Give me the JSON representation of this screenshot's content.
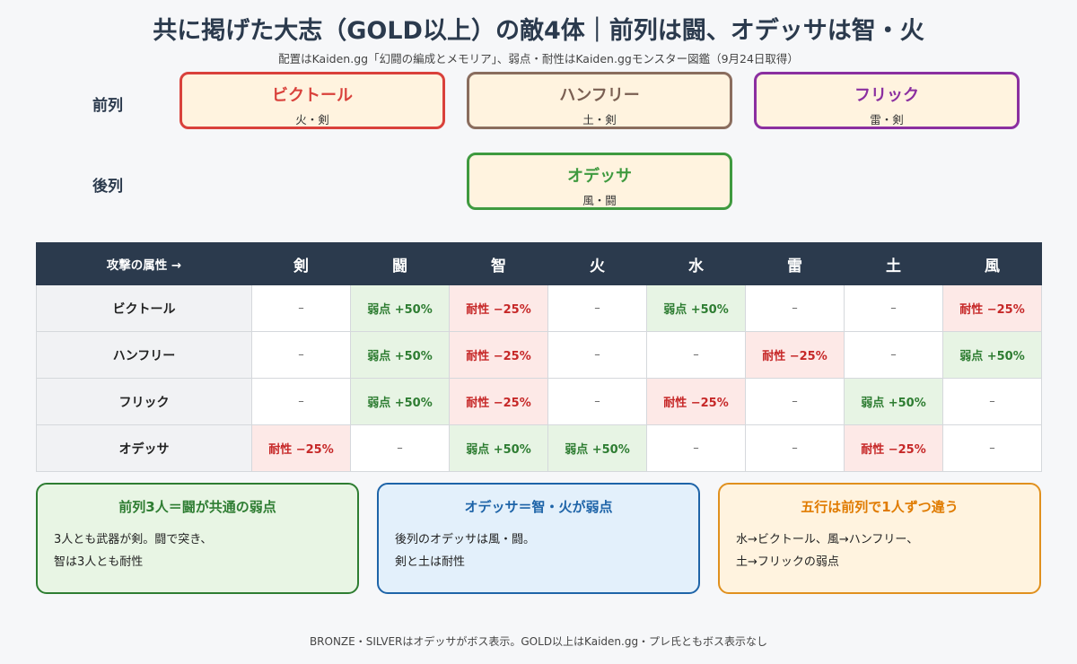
{
  "title": "共に掲げた大志（GOLD以上）の敵4体｜前列は闘、オデッサは智・火",
  "subtitle": "配置はKaiden.gg「幻闘の編成とメモリア」、弱点・耐性はKaiden.ggモンスター図鑑（9月24日取得）",
  "formation": {
    "front_label": "前列",
    "back_label": "後列",
    "front": [
      {
        "name": "ビクトール",
        "attr": "火・剣",
        "color": "#d9413b"
      },
      {
        "name": "ハンフリー",
        "attr": "土・剣",
        "color": "#8a6d5e"
      },
      {
        "name": "フリック",
        "attr": "雷・剣",
        "color": "#8b2fa0"
      }
    ],
    "back": [
      {
        "name": "オデッサ",
        "attr": "風・闘",
        "color": "#3f9a3f"
      }
    ]
  },
  "table": {
    "corner": "攻撃の属性 →",
    "columns": [
      "剣",
      "闘",
      "智",
      "火",
      "水",
      "雷",
      "土",
      "風"
    ],
    "rows": [
      {
        "name": "ビクトール",
        "cells": [
          "–",
          "弱点 +50%",
          "耐性 −25%",
          "–",
          "弱点 +50%",
          "–",
          "–",
          "耐性 −25%"
        ]
      },
      {
        "name": "ハンフリー",
        "cells": [
          "–",
          "弱点 +50%",
          "耐性 −25%",
          "–",
          "–",
          "耐性 −25%",
          "–",
          "弱点 +50%"
        ]
      },
      {
        "name": "フリック",
        "cells": [
          "–",
          "弱点 +50%",
          "耐性 −25%",
          "–",
          "耐性 −25%",
          "–",
          "弱点 +50%",
          "–"
        ]
      },
      {
        "name": "オデッサ",
        "cells": [
          "耐性 −25%",
          "–",
          "弱点 +50%",
          "弱点 +50%",
          "–",
          "–",
          "耐性 −25%",
          "–"
        ]
      }
    ],
    "colors": {
      "weak": "#2e7d32",
      "resist": "#c62828",
      "header": "#2b3a4d"
    }
  },
  "notes": [
    {
      "title": "前列3人＝闘が共通の弱点",
      "line1": "3人とも武器が剣。闘で突き、",
      "line2": "智は3人とも耐性"
    },
    {
      "title": "オデッサ＝智・火が弱点",
      "line1": "後列のオデッサは風・闘。",
      "line2": "剣と土は耐性"
    },
    {
      "title": "五行は前列で1人ずつ違う",
      "line1": "水→ビクトール、風→ハンフリー、",
      "line2": "土→フリックの弱点"
    }
  ],
  "footer": "BRONZE・SILVERはオデッサがボス表示。GOLD以上はKaiden.gg・プレ氏ともボス表示なし"
}
